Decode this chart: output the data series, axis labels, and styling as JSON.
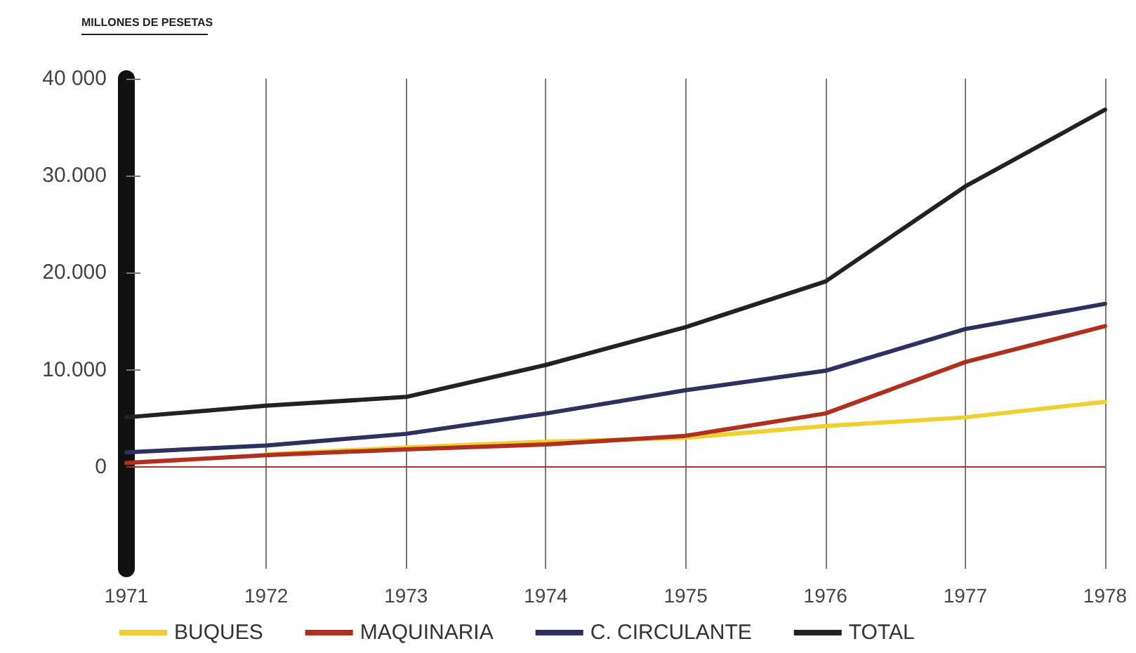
{
  "chart_data": {
    "type": "line",
    "ylabel": "MILLONES DE PESETAS",
    "categories": [
      "1971",
      "1972",
      "1973",
      "1974",
      "1975",
      "1976",
      "1977",
      "1978"
    ],
    "series": [
      {
        "name": "BUQUES",
        "color": "#f0d030",
        "values": [
          null,
          1300,
          2000,
          2600,
          3000,
          4200,
          5100,
          6700
        ]
      },
      {
        "name": "MAQUINARIA",
        "color": "#b03020",
        "values": [
          400,
          1200,
          1800,
          2300,
          3200,
          5500,
          10800,
          14500
        ]
      },
      {
        "name": "C. CIRCULANTE",
        "color": "#303060",
        "values": [
          1500,
          2200,
          3400,
          5500,
          7900,
          9900,
          14200,
          16800
        ]
      },
      {
        "name": "TOTAL",
        "color": "#222222",
        "values": [
          5100,
          6300,
          7200,
          10500,
          14400,
          19100,
          28900,
          36800
        ]
      }
    ],
    "ylim": [
      -10500,
      40000
    ],
    "yticks": [
      {
        "value": 0,
        "label": "0"
      },
      {
        "value": 10000,
        "label": "10.000"
      },
      {
        "value": 20000,
        "label": "20.000"
      },
      {
        "value": 30000,
        "label": "30.000"
      },
      {
        "value": 40000,
        "label": "40 000"
      }
    ],
    "ref_lines": [
      {
        "axis": "y",
        "value": 0,
        "color": "#b03020"
      }
    ],
    "grid": "x",
    "legend": "bottom",
    "marker": "none",
    "line_style": "solid"
  }
}
